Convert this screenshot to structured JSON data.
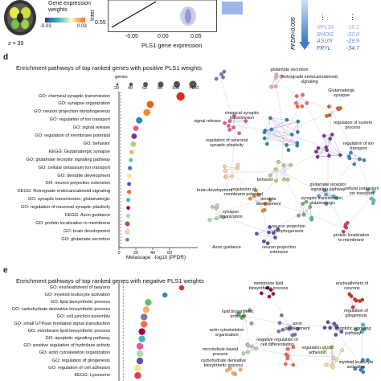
{
  "top": {
    "brain": {
      "legend_title": "Gene expression weights",
      "scale_min": "-0.03",
      "scale_max": "0.03",
      "slice_label": "z = 39"
    },
    "scatter": {
      "yaxis_label": "Inter",
      "ytick": "0.55",
      "xticks": [
        "-0.05",
        "0.00",
        "0.05"
      ],
      "xlabel": "PLS1 gene expression"
    },
    "genes": {
      "ellipsis": "⋮",
      "pfdr_label": "PFDR<0.005",
      "rows": [
        {
          "gene": "RPL34",
          "value": "-16.1"
        },
        {
          "gene": "RHOG",
          "value": "-22.0"
        },
        {
          "gene": "ASUN",
          "value": "-29.9"
        },
        {
          "gene": "FRYL",
          "value": "-34.7"
        }
      ]
    }
  },
  "panel_d": {
    "letter": "d",
    "title": "Enrichment pathways of top ranked genes with positive PLS1 weights",
    "size_legend_title": "genes",
    "size_legend_labels": [
      "20",
      "40",
      "60",
      "80",
      "100",
      ">100"
    ],
    "xlabel_prefix": "Metascape",
    "xlabel": "-log10 (PFDR)",
    "xticks": [
      "0",
      "20",
      "40",
      "60"
    ],
    "terms": [
      {
        "label": "GO: chemical synaptic transmission",
        "value": 73,
        "genes": 120,
        "color": "#d7301f"
      },
      {
        "label": "GO: synapse organization",
        "value": 37,
        "genes": 95,
        "color": "#e8601c"
      },
      {
        "label": "GO: neuron projection morphogenesis",
        "value": 33,
        "genes": 90,
        "color": "#f08c2b"
      },
      {
        "label": "GO: regulation of ion transport",
        "value": 24,
        "genes": 80,
        "color": "#2b83ba"
      },
      {
        "label": "GO: signal release",
        "value": 20,
        "genes": 60,
        "color": "#e65c8c"
      },
      {
        "label": "GO: regulation of membrane potential",
        "value": 18,
        "genes": 60,
        "color": "#7b3294"
      },
      {
        "label": "GO: behavior",
        "value": 17,
        "genes": 60,
        "color": "#a6d96a"
      },
      {
        "label": "KEGG: Glutamatergic synapse",
        "value": 15,
        "genes": 40,
        "color": "#fdae61"
      },
      {
        "label": "GO: glutamate receptor signaling pathway",
        "value": 14,
        "genes": 30,
        "color": "#66c2a5"
      },
      {
        "label": "GO: cellular potassium ion transport",
        "value": 13,
        "genes": 35,
        "color": "#3288bd"
      },
      {
        "label": "GO: dendrite development",
        "value": 12,
        "genes": 40,
        "color": "#fee08b"
      },
      {
        "label": "GO: neuron projection extension",
        "value": 12,
        "genes": 30,
        "color": "#5e4fa2"
      },
      {
        "label": "KEGG: Retrograde endocannabinoid signaling",
        "value": 12,
        "genes": 35,
        "color": "#f46d43"
      },
      {
        "label": "GO: synaptic transmission, glutamatergic",
        "value": 11,
        "genes": 30,
        "color": "#41b6c4"
      },
      {
        "label": "GO: regulation of neuronal synaptic plasticity",
        "value": 11,
        "genes": 25,
        "color": "#9e0142"
      },
      {
        "label": "KEGG: Axon guidance",
        "value": 11,
        "genes": 40,
        "color": "#abdda4"
      },
      {
        "label": "GO: protein localization to membrane",
        "value": 10,
        "genes": 45,
        "color": "#d53e4f"
      },
      {
        "label": "GO: brain development",
        "value": 10,
        "genes": 60,
        "color": "#fdd49e"
      },
      {
        "label": "GO: glutamate secretion",
        "value": 10,
        "genes": 25,
        "color": "#8073ac"
      }
    ],
    "network_labels": [
      "glutamate secretion",
      "Retrograde endocannabinoid signaling",
      "Glutamatergic synapse",
      "signal release",
      "chemical synaptic transmission",
      "regulation of system process",
      "regulation of ion transport",
      "regulation of neuronal synaptic plasticity",
      "brain development",
      "behavior",
      "regulation of membrane potential",
      "glutamate receptor signaling pathway",
      "synaptic transmission, glutamatergic",
      "cellular potassium ion transport",
      "dendrite development",
      "synapse organization",
      "neuron projection morphogenesis",
      "Axon guidance",
      "neuron projection extension",
      "protein localization to membrane"
    ]
  },
  "panel_e": {
    "letter": "e",
    "title": "Enrichment pathways of top ranked genes with negative PLS1 weights",
    "terms": [
      {
        "label": "GO: ensheathment of neurons",
        "value": 30,
        "color": "#d7301f"
      },
      {
        "label": "GO: myeloid leukocyte activation",
        "value": 22,
        "color": "#3288bd"
      },
      {
        "label": "GO: lipid biosynthetic process",
        "value": 14,
        "color": "#66bd63"
      },
      {
        "label": "GO: carbohydrate derivative biosynthetic process",
        "value": 13,
        "color": "#fdae61"
      },
      {
        "label": "GO: cell junction assembly",
        "value": 12,
        "color": "#8073ac"
      },
      {
        "label": "GO: small GTPase mediated signal transduction",
        "value": 12,
        "color": "#f46d43"
      },
      {
        "label": "GO: membrane lipid biosynthetic process",
        "value": 11,
        "color": "#9e0142"
      },
      {
        "label": "GO: apoptotic signaling pathway",
        "value": 11,
        "color": "#41b6c4"
      },
      {
        "label": "GO: positive regulation of hydrolase activity",
        "value": 10,
        "color": "#e65c8c"
      },
      {
        "label": "GO: actin cytoskeleton organization",
        "value": 10,
        "color": "#abdda4"
      },
      {
        "label": "GO: regulation of gliogenesis",
        "value": 10,
        "color": "#5e4fa2"
      },
      {
        "label": "GO: regulation of cell adhesion",
        "value": 9,
        "color": "#fee08b"
      },
      {
        "label": "KEGG: Lysosome",
        "value": 9,
        "color": "#d53e4f"
      }
    ],
    "network_labels": [
      "membrane lipid biosynthetic process",
      "ensheathment of neurons",
      "lipid biosynthetic process",
      "regulation of gliogenesis",
      "axon development",
      "actin cytoskeleton organization",
      "negative regulation of cell differentiation",
      "apoptotic signaling pathway",
      "microtubule-based process",
      "regulation of cell adhesion",
      "carbohydrate derivative biosynthetic process",
      "myeloid leukocyte activation"
    ]
  }
}
